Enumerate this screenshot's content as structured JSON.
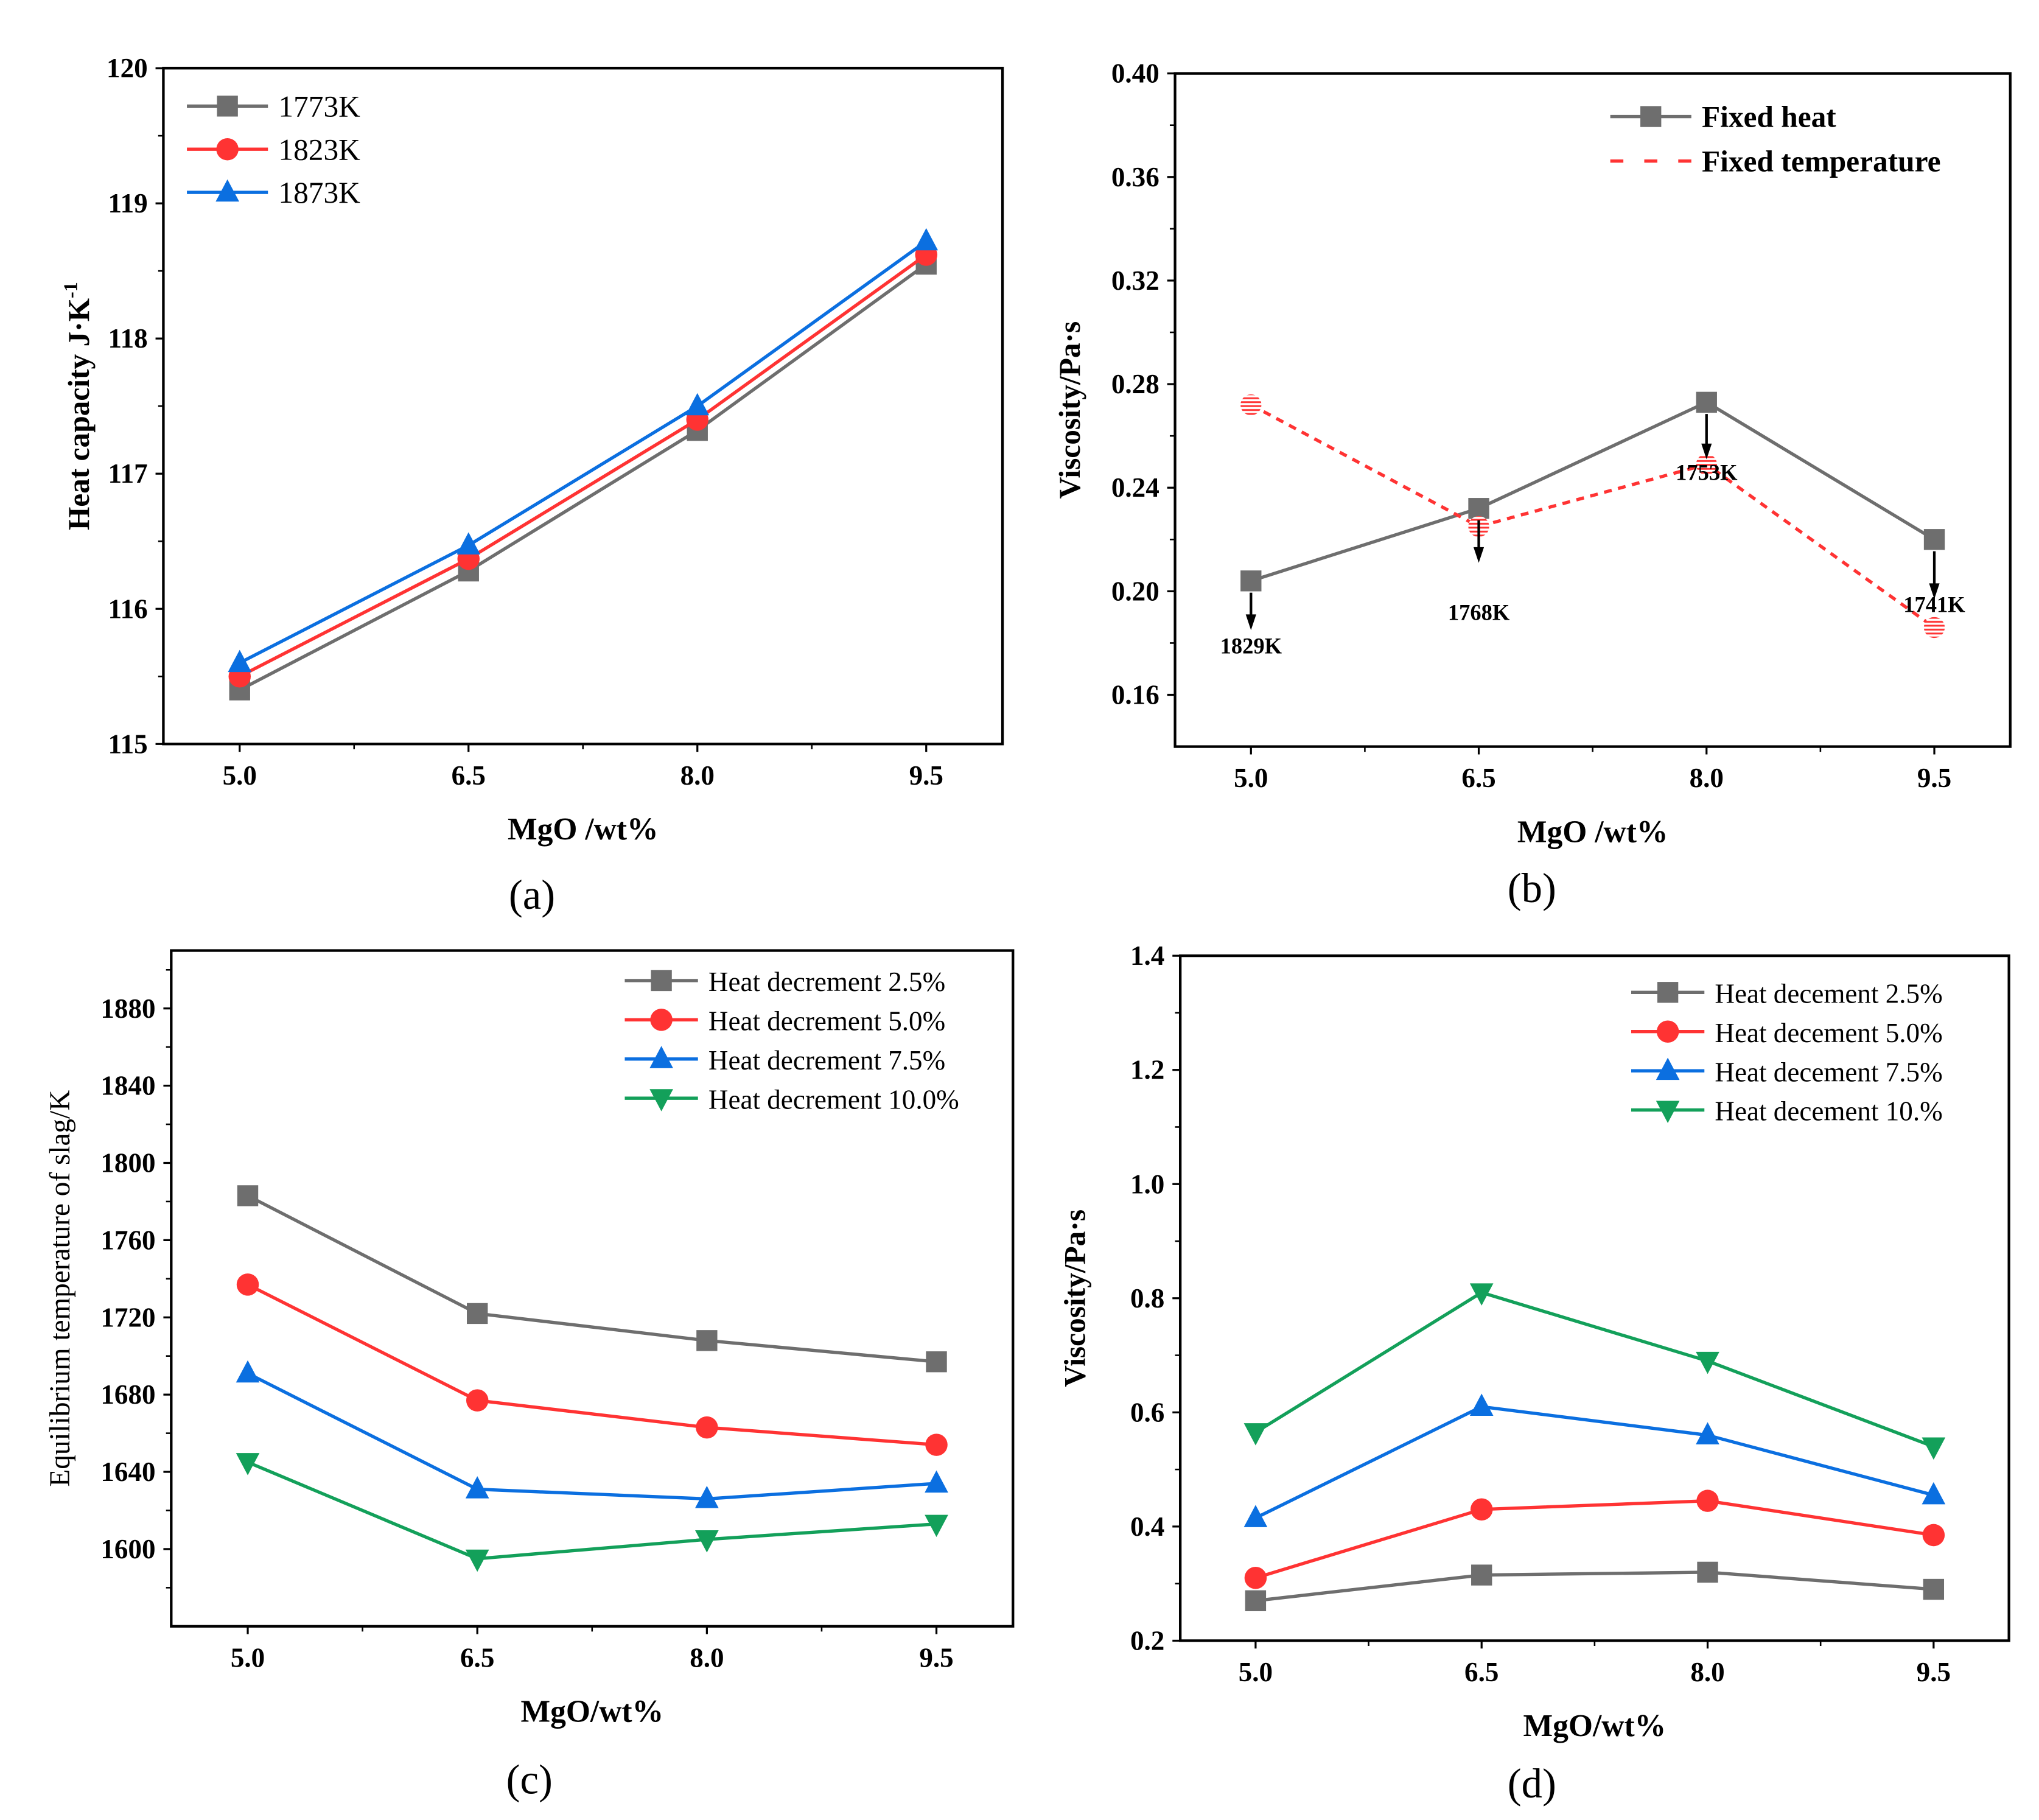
{
  "chart_data": [
    {
      "panel": "(a)",
      "type": "line",
      "xlabel": "MgO /wt%",
      "ylabel": "Heat capacity J·K",
      "ylabel_sup": "-1",
      "x": [
        5.0,
        6.5,
        8.0,
        9.5
      ],
      "xticks": [
        "5.0",
        "6.5",
        "8.0",
        "9.5"
      ],
      "xlim": [
        4.5,
        10.0
      ],
      "ylim": [
        115,
        120
      ],
      "yticks": [
        "115",
        "116",
        "117",
        "118",
        "119",
        "120"
      ],
      "legend": "top-left",
      "legend_bold": false,
      "series": [
        {
          "name": "1773K",
          "color": "#6e6e6e",
          "marker": "square",
          "values": [
            115.4,
            116.28,
            117.32,
            118.55
          ]
        },
        {
          "name": "1823K",
          "color": "#ff3333",
          "marker": "circle",
          "values": [
            115.5,
            116.37,
            117.4,
            118.62
          ]
        },
        {
          "name": "1873K",
          "color": "#0b6fe0",
          "marker": "triangle",
          "values": [
            115.6,
            116.47,
            117.5,
            118.72
          ]
        }
      ]
    },
    {
      "panel": "(b)",
      "type": "line",
      "xlabel": "MgO /wt%",
      "ylabel": "Viscosity/Pa·s",
      "x": [
        5.0,
        6.5,
        8.0,
        9.5
      ],
      "xticks": [
        "5.0",
        "6.5",
        "8.0",
        "9.5"
      ],
      "xlim": [
        4.5,
        10.0
      ],
      "ylim": [
        0.14,
        0.4
      ],
      "yticks": [
        "0.16",
        "0.20",
        "0.24",
        "0.28",
        "0.32",
        "0.36",
        "0.40"
      ],
      "legend": "top-right",
      "legend_bold": true,
      "series": [
        {
          "name": "Fixed heat",
          "color": "#6e6e6e",
          "marker": "square",
          "values": [
            0.204,
            0.232,
            0.273,
            0.22
          ]
        },
        {
          "name": "Fixed temperature",
          "color": "#ff3333",
          "marker": "hatched-circle",
          "dashed": true,
          "values": [
            0.272,
            0.225,
            0.249,
            0.186
          ]
        }
      ],
      "annotations": [
        "1829K",
        "1768K",
        "1753K",
        "1741K"
      ]
    },
    {
      "panel": "(c)",
      "type": "line",
      "xlabel": "MgO/wt%",
      "ylabel": "Equilibrium temperature of slag/K",
      "x": [
        5.0,
        6.5,
        8.0,
        9.5
      ],
      "xticks": [
        "5.0",
        "6.5",
        "8.0",
        "9.5"
      ],
      "xlim": [
        4.5,
        10.0
      ],
      "ylim": [
        1560,
        1910
      ],
      "yticks": [
        "1600",
        "1640",
        "1680",
        "1720",
        "1760",
        "1800",
        "1840",
        "1880"
      ],
      "legend": "top-right",
      "legend_bold": false,
      "series": [
        {
          "name": "Heat decrement 2.5%",
          "color": "#6e6e6e",
          "marker": "square",
          "values": [
            1783,
            1722,
            1708,
            1697
          ]
        },
        {
          "name": "Heat decrement 5.0%",
          "color": "#ff3333",
          "marker": "circle",
          "values": [
            1737,
            1677,
            1663,
            1654
          ]
        },
        {
          "name": "Heat decrement 7.5%",
          "color": "#0b6fe0",
          "marker": "triangle",
          "values": [
            1691,
            1631,
            1626,
            1634
          ]
        },
        {
          "name": "Heat decrement 10.0%",
          "color": "#13a05a",
          "marker": "triangle-down",
          "values": [
            1645,
            1595,
            1605,
            1613
          ]
        }
      ]
    },
    {
      "panel": "(d)",
      "type": "line",
      "xlabel": "MgO/wt%",
      "ylabel": "Viscosity/Pa·s",
      "x": [
        5.0,
        6.5,
        8.0,
        9.5
      ],
      "xticks": [
        "5.0",
        "6.5",
        "8.0",
        "9.5"
      ],
      "xlim": [
        4.5,
        10.0
      ],
      "ylim": [
        0.2,
        1.4
      ],
      "yticks": [
        "0.2",
        "0.4",
        "0.6",
        "0.8",
        "1.0",
        "1.2",
        "1.4"
      ],
      "legend": "top-right",
      "legend_bold": false,
      "series": [
        {
          "name": "Heat decement 2.5%",
          "color": "#6e6e6e",
          "marker": "square",
          "values": [
            0.27,
            0.315,
            0.32,
            0.29
          ]
        },
        {
          "name": "Heat decement 5.0%",
          "color": "#ff3333",
          "marker": "circle",
          "values": [
            0.31,
            0.43,
            0.445,
            0.385
          ]
        },
        {
          "name": "Heat decement 7.5%",
          "color": "#0b6fe0",
          "marker": "triangle",
          "values": [
            0.415,
            0.61,
            0.56,
            0.455
          ]
        },
        {
          "name": "Heat decement 10.%",
          "color": "#13a05a",
          "marker": "triangle-down",
          "values": [
            0.565,
            0.81,
            0.69,
            0.54
          ]
        }
      ]
    }
  ]
}
